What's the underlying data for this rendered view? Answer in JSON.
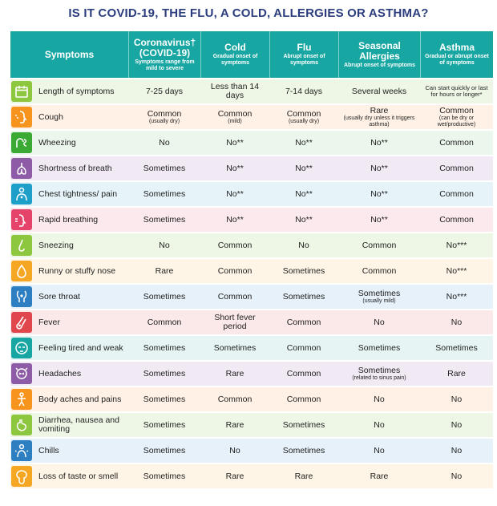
{
  "title": "IS IT COVID-19, THE FLU, A COLD, ALLERGIES OR ASTHMA?",
  "header": {
    "symptoms": "Symptoms",
    "columns": [
      {
        "main": "Coronavirus† (COVID-19)",
        "sub": "Symptoms range from mild to severe"
      },
      {
        "main": "Cold",
        "sub": "Gradual onset of symptoms"
      },
      {
        "main": "Flu",
        "sub": "Abrupt onset of symptoms"
      },
      {
        "main": "Seasonal Allergies",
        "sub": "Abrupt onset of symptoms"
      },
      {
        "main": "Asthma",
        "sub": "Gradual or abrupt onset of symptoms"
      }
    ]
  },
  "rows": [
    {
      "label": "Length of symptoms",
      "icon": "calendar-icon",
      "tint": "#eef7e6",
      "color": "#8dc63f",
      "cells": [
        {
          "t": "7-25 days"
        },
        {
          "t": "Less than 14 days"
        },
        {
          "t": "7-14 days"
        },
        {
          "t": "Several weeks"
        },
        {
          "t": "Can start quickly or last for hours or longer*",
          "small": true
        }
      ]
    },
    {
      "label": "Cough",
      "icon": "cough-icon",
      "tint": "#fff1e6",
      "color": "#f7941d",
      "cells": [
        {
          "t": "Common",
          "s": "(usually dry)"
        },
        {
          "t": "Common",
          "s": "(mild)"
        },
        {
          "t": "Common",
          "s": "(usually dry)"
        },
        {
          "t": "Rare",
          "s": "(usually dry unless it triggers asthma)"
        },
        {
          "t": "Common",
          "s": "(can be dry or wet/productive)"
        }
      ]
    },
    {
      "label": "Wheezing",
      "icon": "wheezing-icon",
      "tint": "#ebf6ec",
      "color": "#3aaa35",
      "cells": [
        {
          "t": "No"
        },
        {
          "t": "No**"
        },
        {
          "t": "No**"
        },
        {
          "t": "No**"
        },
        {
          "t": "Common"
        }
      ]
    },
    {
      "label": "Shortness of breath",
      "icon": "lungs-icon",
      "tint": "#f1eaf5",
      "color": "#8e5ba6",
      "cells": [
        {
          "t": "Sometimes"
        },
        {
          "t": "No**"
        },
        {
          "t": "No**"
        },
        {
          "t": "No**"
        },
        {
          "t": "Common"
        }
      ]
    },
    {
      "label": "Chest tightness/ pain",
      "icon": "chest-icon",
      "tint": "#e6f3f8",
      "color": "#1e9fc9",
      "cells": [
        {
          "t": "Sometimes"
        },
        {
          "t": "No**"
        },
        {
          "t": "No**"
        },
        {
          "t": "No**"
        },
        {
          "t": "Common"
        }
      ]
    },
    {
      "label": "Rapid breathing",
      "icon": "breathing-icon",
      "tint": "#fbe9ee",
      "color": "#e6436b",
      "cells": [
        {
          "t": "Sometimes"
        },
        {
          "t": "No**"
        },
        {
          "t": "No**"
        },
        {
          "t": "No**"
        },
        {
          "t": "Common"
        }
      ]
    },
    {
      "label": "Sneezing",
      "icon": "nose-icon",
      "tint": "#eef7e6",
      "color": "#8dc63f",
      "cells": [
        {
          "t": "No"
        },
        {
          "t": "Common"
        },
        {
          "t": "No"
        },
        {
          "t": "Common"
        },
        {
          "t": "No***"
        }
      ]
    },
    {
      "label": "Runny or stuffy nose",
      "icon": "drop-icon",
      "tint": "#fff5e6",
      "color": "#f5a623",
      "cells": [
        {
          "t": "Rare"
        },
        {
          "t": "Common"
        },
        {
          "t": "Sometimes"
        },
        {
          "t": "Common"
        },
        {
          "t": "No***"
        }
      ]
    },
    {
      "label": "Sore throat",
      "icon": "throat-icon",
      "tint": "#e6f1f9",
      "color": "#2d7fc1",
      "cells": [
        {
          "t": "Sometimes"
        },
        {
          "t": "Common"
        },
        {
          "t": "Sometimes"
        },
        {
          "t": "Sometimes",
          "s": "(usually mild)"
        },
        {
          "t": "No***"
        }
      ]
    },
    {
      "label": "Fever",
      "icon": "thermometer-icon",
      "tint": "#fbe9e9",
      "color": "#e0474c",
      "cells": [
        {
          "t": "Common"
        },
        {
          "t": "Short fever period"
        },
        {
          "t": "Common"
        },
        {
          "t": "No"
        },
        {
          "t": "No"
        }
      ]
    },
    {
      "label": "Feeling tired and weak",
      "icon": "tired-icon",
      "tint": "#e6f5f4",
      "color": "#17a6a2",
      "cells": [
        {
          "t": "Sometimes"
        },
        {
          "t": "Sometimes"
        },
        {
          "t": "Common"
        },
        {
          "t": "Sometimes"
        },
        {
          "t": "Sometimes"
        }
      ]
    },
    {
      "label": "Headaches",
      "icon": "headache-icon",
      "tint": "#f1eaf5",
      "color": "#8e5ba6",
      "cells": [
        {
          "t": "Sometimes"
        },
        {
          "t": "Rare"
        },
        {
          "t": "Common"
        },
        {
          "t": "Sometimes",
          "s": "(related to sinus pain)"
        },
        {
          "t": "Rare"
        }
      ]
    },
    {
      "label": "Body aches and pains",
      "icon": "body-aches-icon",
      "tint": "#fff1e6",
      "color": "#f7941d",
      "cells": [
        {
          "t": "Sometimes"
        },
        {
          "t": "Common"
        },
        {
          "t": "Common"
        },
        {
          "t": "No"
        },
        {
          "t": "No"
        }
      ]
    },
    {
      "label": "Diarrhea, nausea and vomiting",
      "icon": "stomach-icon",
      "tint": "#eef7e6",
      "color": "#8dc63f",
      "cells": [
        {
          "t": "Sometimes"
        },
        {
          "t": "Rare"
        },
        {
          "t": "Sometimes"
        },
        {
          "t": "No"
        },
        {
          "t": "No"
        }
      ]
    },
    {
      "label": "Chills",
      "icon": "chills-icon",
      "tint": "#e6f1f9",
      "color": "#2d7fc1",
      "cells": [
        {
          "t": "Sometimes"
        },
        {
          "t": "No"
        },
        {
          "t": "Sometimes"
        },
        {
          "t": "No"
        },
        {
          "t": "No"
        }
      ]
    },
    {
      "label": "Loss of taste or smell",
      "icon": "taste-icon",
      "tint": "#fff5e6",
      "color": "#f5a623",
      "cells": [
        {
          "t": "Sometimes"
        },
        {
          "t": "Rare"
        },
        {
          "t": "Rare"
        },
        {
          "t": "Rare"
        },
        {
          "t": "No"
        }
      ]
    }
  ]
}
